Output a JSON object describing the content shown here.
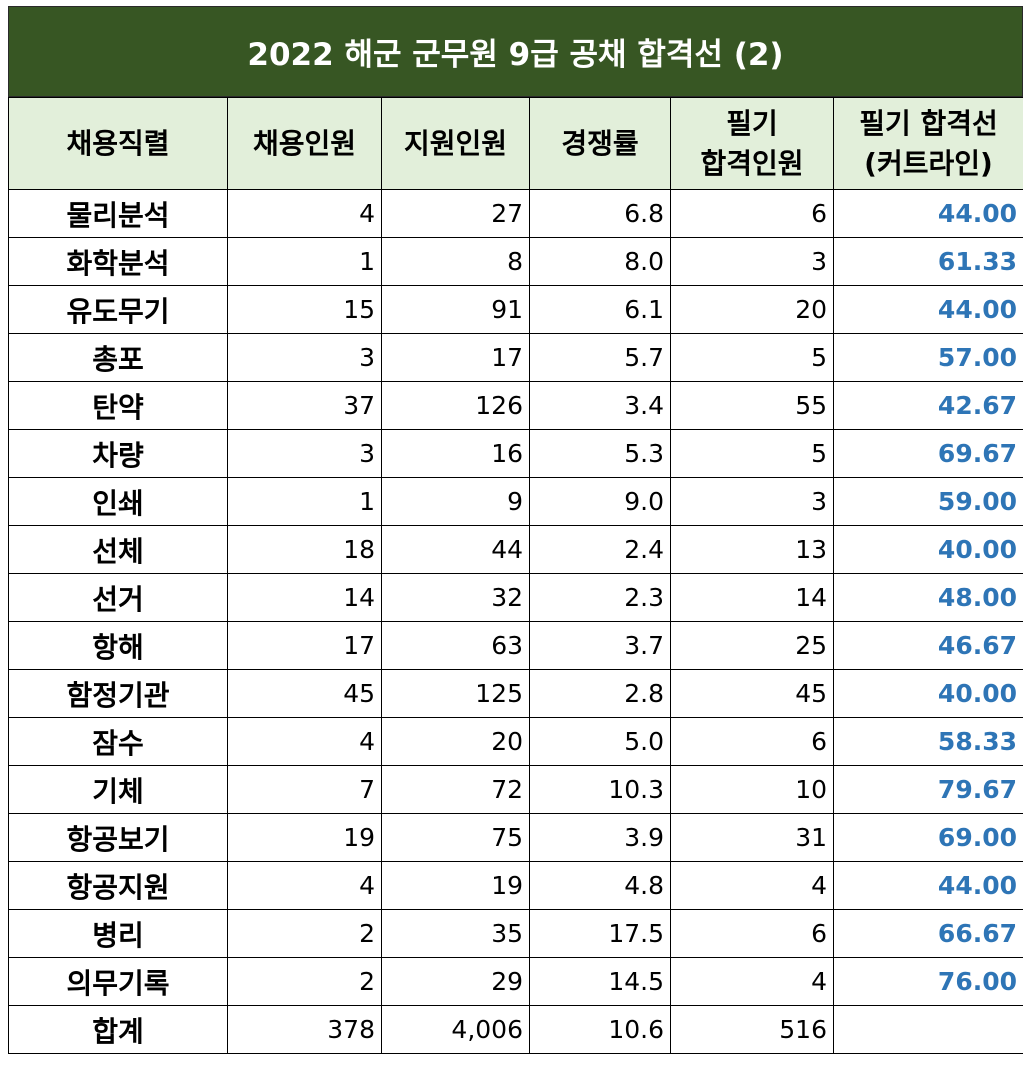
{
  "title": "2022 해군 군무원 9급 공채  합격선 (2)",
  "headers": [
    "채용직렬",
    "채용인원",
    "지원인원",
    "경쟁률",
    "필기\n합격인원",
    "필기 합격선\n(커트라인)"
  ],
  "rows": [
    [
      "물리분석",
      "4",
      "27",
      "6.8",
      "6",
      "44.00"
    ],
    [
      "화학분석",
      "1",
      "8",
      "8.0",
      "3",
      "61.33"
    ],
    [
      "유도무기",
      "15",
      "91",
      "6.1",
      "20",
      "44.00"
    ],
    [
      "총포",
      "3",
      "17",
      "5.7",
      "5",
      "57.00"
    ],
    [
      "탄약",
      "37",
      "126",
      "3.4",
      "55",
      "42.67"
    ],
    [
      "차량",
      "3",
      "16",
      "5.3",
      "5",
      "69.67"
    ],
    [
      "인쇄",
      "1",
      "9",
      "9.0",
      "3",
      "59.00"
    ],
    [
      "선체",
      "18",
      "44",
      "2.4",
      "13",
      "40.00"
    ],
    [
      "선거",
      "14",
      "32",
      "2.3",
      "14",
      "48.00"
    ],
    [
      "항해",
      "17",
      "63",
      "3.7",
      "25",
      "46.67"
    ],
    [
      "함정기관",
      "45",
      "125",
      "2.8",
      "45",
      "40.00"
    ],
    [
      "잠수",
      "4",
      "20",
      "5.0",
      "6",
      "58.33"
    ],
    [
      "기체",
      "7",
      "72",
      "10.3",
      "10",
      "79.67"
    ],
    [
      "항공보기",
      "19",
      "75",
      "3.9",
      "31",
      "69.00"
    ],
    [
      "항공지원",
      "4",
      "19",
      "4.8",
      "4",
      "44.00"
    ],
    [
      "병리",
      "2",
      "35",
      "17.5",
      "6",
      "66.67"
    ],
    [
      "의무기록",
      "2",
      "29",
      "14.5",
      "4",
      "76.00"
    ],
    [
      "합계",
      "378",
      "4,006",
      "10.6",
      "516",
      ""
    ]
  ],
  "colors": {
    "title_bg": "#375623",
    "header_bg": "#e2efda",
    "cutline_text": "#2e75b6"
  }
}
